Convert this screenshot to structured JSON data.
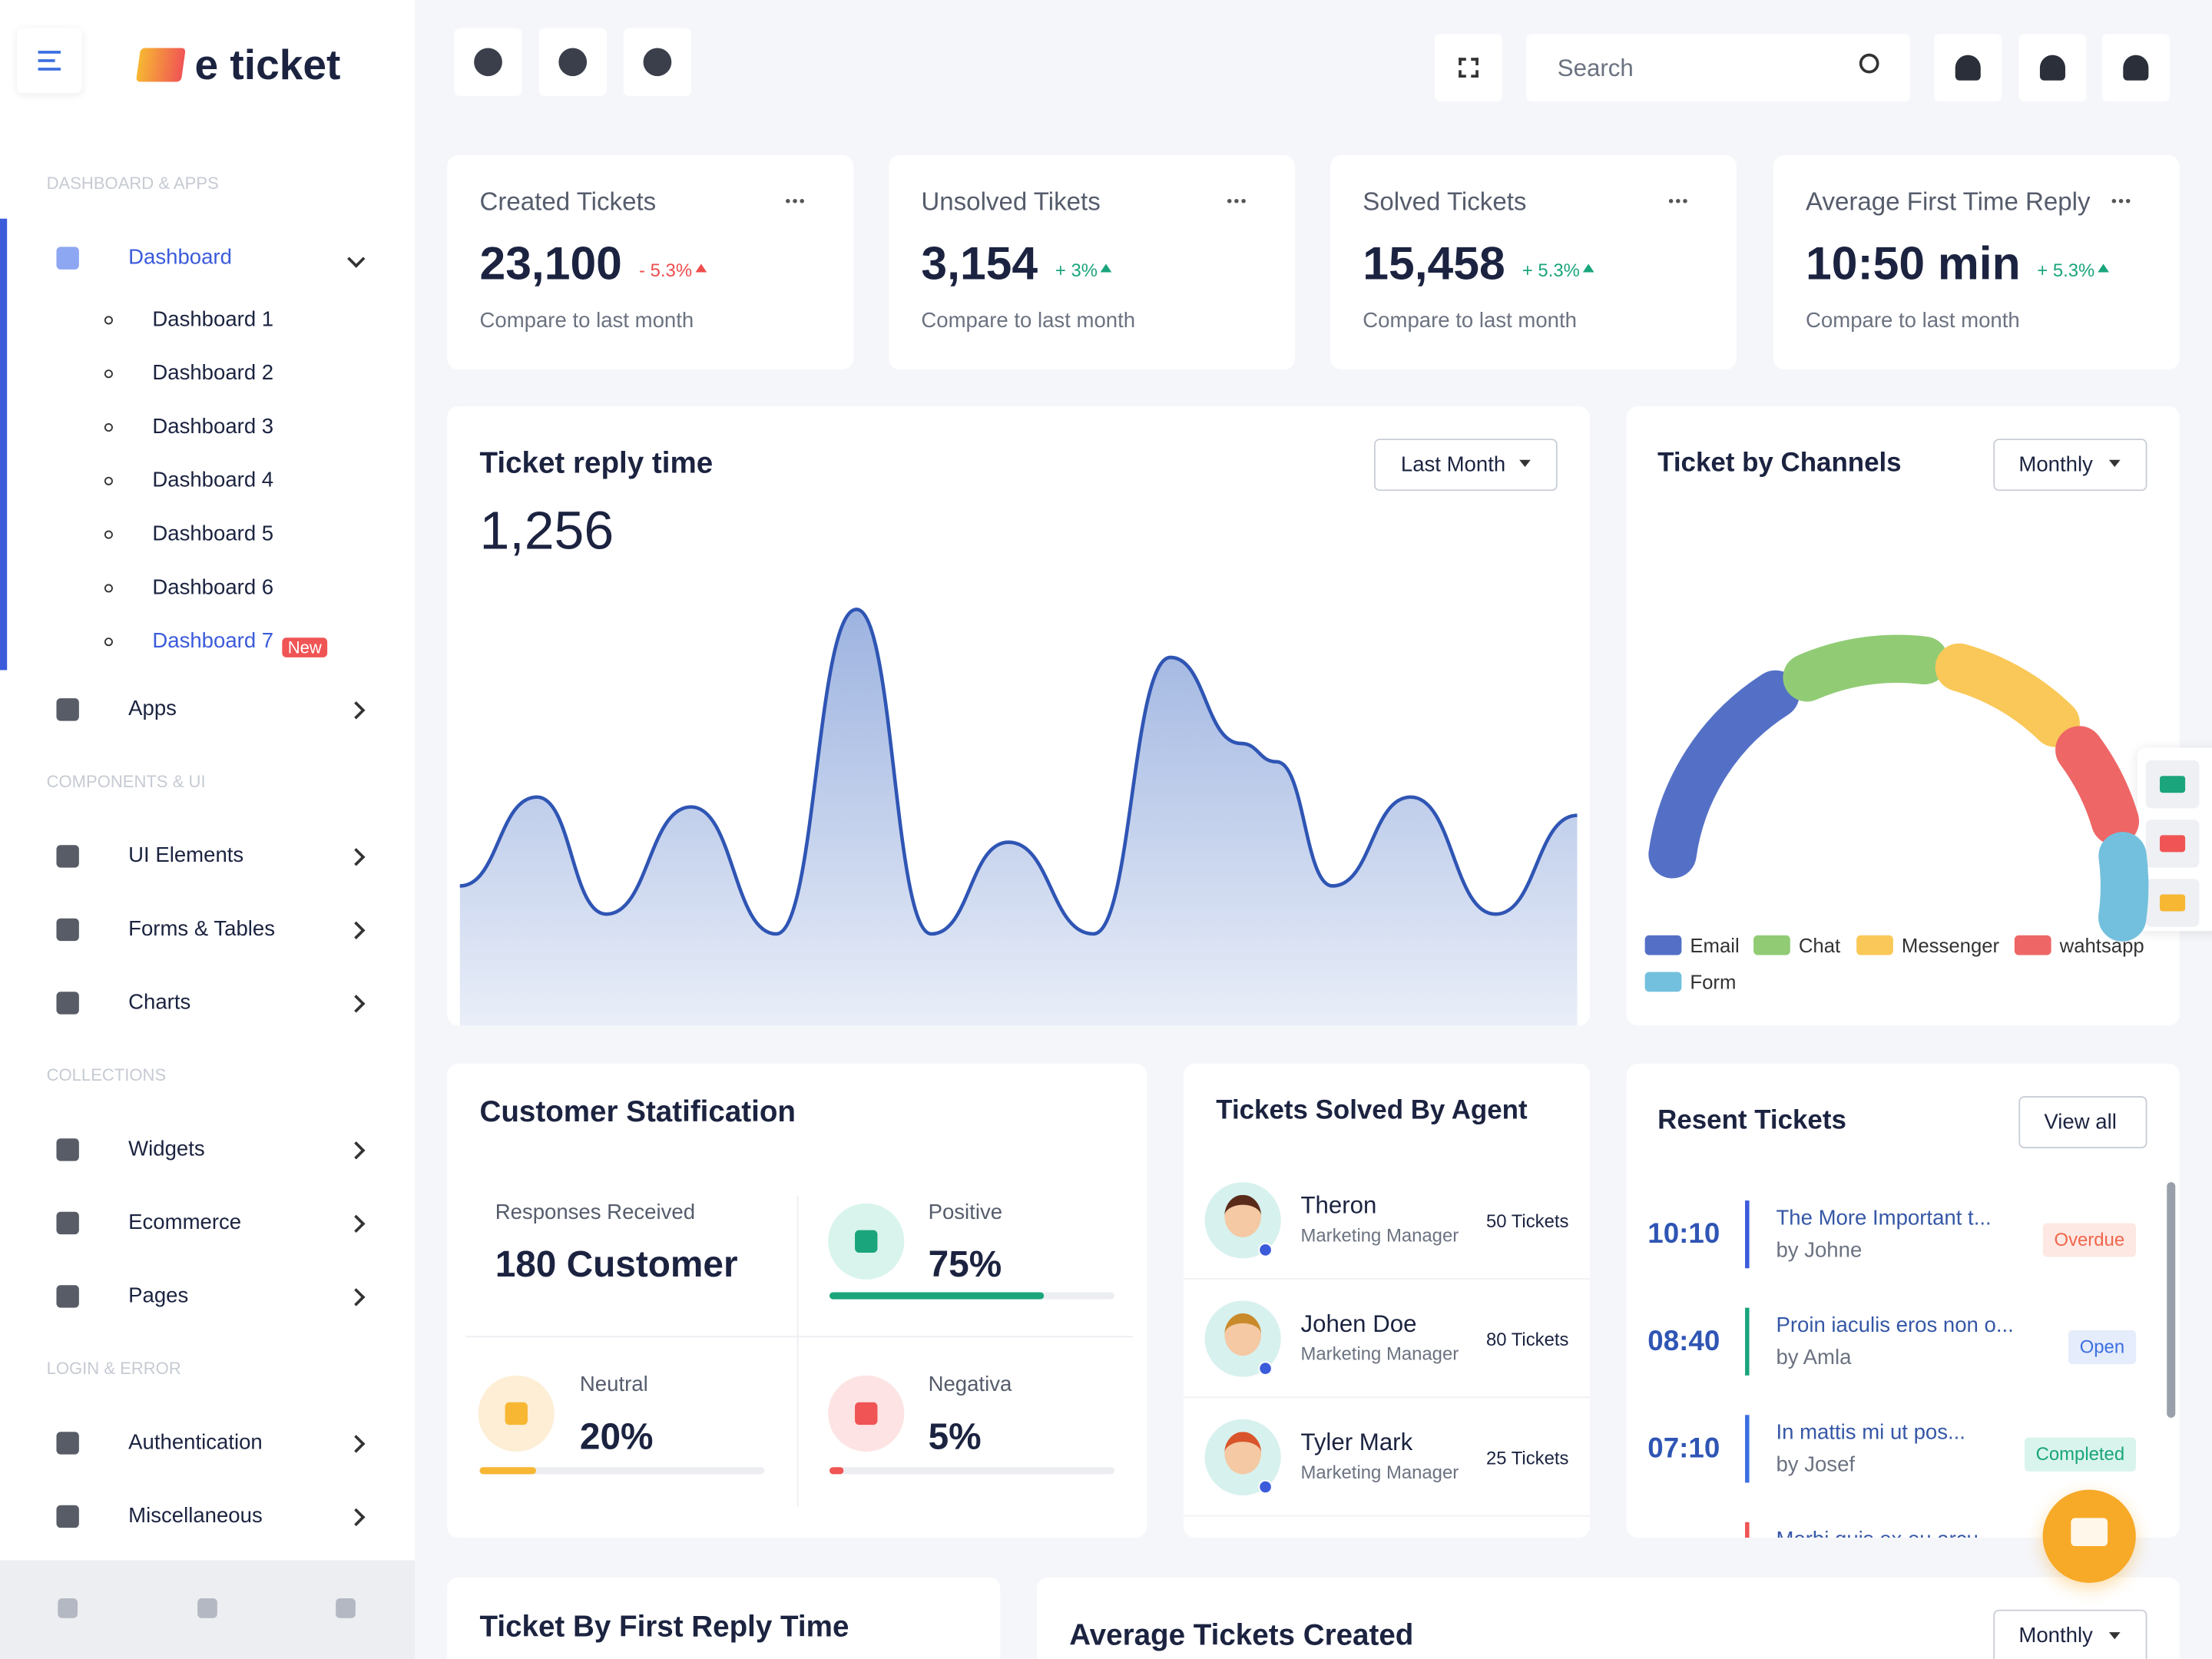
{
  "brand": "e ticket",
  "search_placeholder": "Search",
  "sidebar": {
    "sections": [
      {
        "title": "DASHBOARD & APPS",
        "items": [
          {
            "label": "Dashboard",
            "children": [
              {
                "label": "Dashboard 1"
              },
              {
                "label": "Dashboard 2"
              },
              {
                "label": "Dashboard 3"
              },
              {
                "label": "Dashboard 4"
              },
              {
                "label": "Dashboard 5"
              },
              {
                "label": "Dashboard 6"
              },
              {
                "label": "Dashboard 7",
                "badge": "New"
              }
            ]
          },
          {
            "label": "Apps"
          }
        ]
      },
      {
        "title": "COMPONENTS & UI",
        "items": [
          {
            "label": "UI Elements"
          },
          {
            "label": "Forms & Tables"
          },
          {
            "label": "Charts"
          }
        ]
      },
      {
        "title": "COLLECTIONS",
        "items": [
          {
            "label": "Widgets"
          },
          {
            "label": "Ecommerce"
          },
          {
            "label": "Pages"
          }
        ]
      },
      {
        "title": "LOGIN & ERROR",
        "items": [
          {
            "label": "Authentication"
          },
          {
            "label": "Miscellaneous"
          }
        ]
      }
    ]
  },
  "stats": [
    {
      "title": "Created Tickets",
      "value": "23,100",
      "change": "- 5.3%",
      "change_color": "#f04d4d",
      "note": "Compare to last month"
    },
    {
      "title": "Unsolved Tikets",
      "value": "3,154",
      "change": "+ 3%",
      "change_color": "#1aa57c",
      "note": "Compare to last month"
    },
    {
      "title": "Solved Tickets",
      "value": "15,458",
      "change": "+ 5.3%",
      "change_color": "#1aa57c",
      "note": "Compare to last month"
    },
    {
      "title": "Average First Time Reply",
      "value": "10:50 min",
      "change": "+ 5.3%",
      "change_color": "#1aa57c",
      "note": "Compare to last month"
    }
  ],
  "reply_chart": {
    "title": "Ticket reply time",
    "value": "1,256",
    "filter": "Last Month",
    "color": "#2f55b4",
    "xlim": [
      0,
      100
    ],
    "ylim": [
      0,
      300
    ],
    "x": [
      0,
      6.9,
      13.1,
      20.7,
      28.3,
      35.5,
      42.2,
      49.1,
      56.7,
      63.6,
      69.9,
      73.1,
      78.1,
      85.1,
      92.7,
      100
    ],
    "values": [
      99,
      162,
      79,
      155,
      65,
      295,
      65,
      130,
      65,
      261,
      200,
      187,
      99,
      162,
      79,
      149
    ]
  },
  "channels": {
    "title": "Ticket by Channels",
    "filter": "Monthly",
    "series": [
      {
        "name": "Email",
        "color": "#5470c6",
        "value": 54
      },
      {
        "name": "Chat",
        "color": "#91cc75",
        "value": 33
      },
      {
        "name": "Messenger",
        "color": "#fac858",
        "value": 31
      },
      {
        "name": "wahtsapp",
        "color": "#ee6666",
        "value": 22
      },
      {
        "name": "Form",
        "color": "#73c0de",
        "value": 17
      }
    ]
  },
  "satisfaction": {
    "title": "Customer Statification",
    "responses_label": "Responses Received",
    "responses": "180 Customer",
    "items": [
      {
        "label": "Positive",
        "value": 75,
        "value_label": "75%",
        "color": "#1aa57c"
      },
      {
        "label": "Neutral",
        "value": 20,
        "value_label": "20%",
        "color": "#f7b733"
      },
      {
        "label": "Negativa",
        "value": 5,
        "value_label": "5%",
        "color": "#f05454"
      }
    ]
  },
  "agents": {
    "title": "Tickets Solved By Agent",
    "rows": [
      {
        "name": "Theron",
        "role": "Marketing Manager",
        "tickets": "50 Tickets"
      },
      {
        "name": "Johen Doe",
        "role": "Marketing Manager",
        "tickets": "80 Tickets"
      },
      {
        "name": "Tyler Mark",
        "role": "Marketing Manager",
        "tickets": "25 Tickets"
      }
    ]
  },
  "recent": {
    "title": "Resent Tickets",
    "button": "View all",
    "rows": [
      {
        "time": "10:10",
        "title": "The More Important t...",
        "by": "by Johne",
        "status": "Overdue"
      },
      {
        "time": "08:40",
        "title": "Proin iaculis eros non o...",
        "by": "by Amla",
        "status": "Open"
      },
      {
        "time": "07:10",
        "title": "In mattis mi ut pos...",
        "by": "by Josef",
        "status": "Completed"
      },
      {
        "time": "",
        "title": "Morbi quis ex eu arcu",
        "by": "",
        "status": ""
      }
    ]
  },
  "bottom": {
    "first_reply": "Ticket By First Reply Time",
    "average": "Average Tickets Created",
    "filter": "Monthly"
  }
}
